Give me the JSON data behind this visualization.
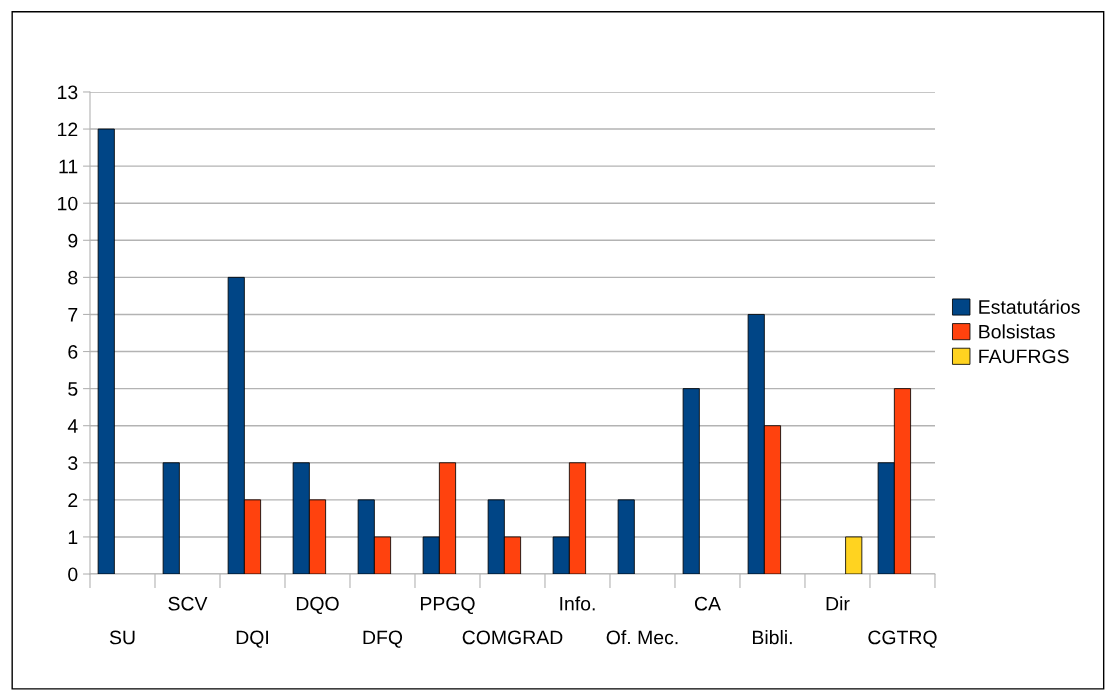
{
  "chart_data": {
    "type": "bar",
    "categories": [
      "SU",
      "SCV",
      "DQI",
      "DQO",
      "DFQ",
      "PPGQ",
      "COMGRAD",
      "Info.",
      "Of. Mec.",
      "CA",
      "Bibli.",
      "Dir",
      "CGTRQ"
    ],
    "series": [
      {
        "name": "Estatutários",
        "color": "#004586",
        "values": [
          12,
          3,
          8,
          3,
          2,
          1,
          2,
          1,
          2,
          5,
          7,
          null,
          3
        ]
      },
      {
        "name": "Bolsistas",
        "color": "#ff420e",
        "values": [
          null,
          null,
          2,
          2,
          1,
          3,
          1,
          3,
          null,
          null,
          4,
          null,
          5
        ]
      },
      {
        "name": "FAUFRGS",
        "color": "#ffd320",
        "values": [
          null,
          null,
          null,
          null,
          null,
          null,
          null,
          null,
          null,
          null,
          null,
          1,
          null
        ]
      }
    ],
    "ylim": [
      0,
      13
    ],
    "yticks": [
      0,
      1,
      2,
      3,
      4,
      5,
      6,
      7,
      8,
      9,
      10,
      11,
      12,
      13
    ],
    "grid": "y",
    "legend": "right"
  }
}
